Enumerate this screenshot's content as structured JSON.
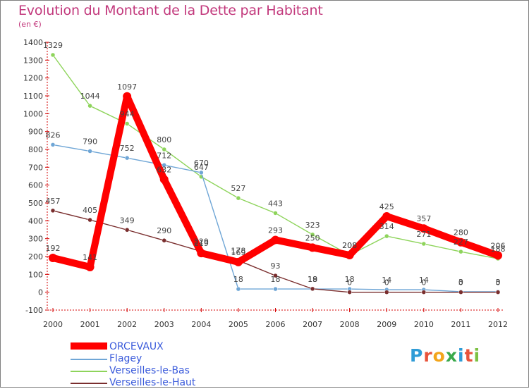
{
  "title": "Evolution du Montant de la Dette par Habitant",
  "subtitle": "(en €)",
  "logo": {
    "letters": [
      "P",
      "r",
      "o",
      "x",
      "i",
      "t",
      "i"
    ],
    "colors": [
      "#2f9cd6",
      "#e8533a",
      "#f3a51b",
      "#3aa94b",
      "#2f9cd6",
      "#e8533a",
      "#7cc142"
    ]
  },
  "chart_data": {
    "type": "line",
    "x": [
      "2000",
      "2001",
      "2002",
      "2003",
      "2004",
      "2005",
      "2006",
      "2007",
      "2008",
      "2009",
      "2010",
      "2011",
      "2012"
    ],
    "ylim": [
      -100,
      1400
    ],
    "yticks": [
      -100,
      0,
      100,
      200,
      300,
      400,
      500,
      600,
      700,
      800,
      900,
      1000,
      1100,
      1200,
      1300,
      1400
    ],
    "grid": false,
    "legend_position": "bottom-left",
    "series": [
      {
        "name": "ORCEVAUX",
        "color": "#ff0000",
        "values": [
          192,
          141,
          1097,
          632,
          219,
          169,
          293,
          250,
          208,
          425,
          357,
          280,
          206
        ]
      },
      {
        "name": "Flagey",
        "color": "#6fa6d6",
        "values": [
          826,
          790,
          752,
          712,
          670,
          18,
          18,
          18,
          18,
          14,
          14,
          3,
          3
        ]
      },
      {
        "name": "Verseilles-le-Bas",
        "color": "#8ed45b",
        "values": [
          1329,
          1044,
          944,
          800,
          647,
          527,
          443,
          323,
          208,
          314,
          271,
          227,
          188
        ]
      },
      {
        "name": "Verseilles-le-Haut",
        "color": "#7a2e2e",
        "values": [
          457,
          405,
          349,
          290,
          229,
          178,
          93,
          19,
          0,
          0,
          0,
          0,
          0
        ]
      }
    ]
  }
}
